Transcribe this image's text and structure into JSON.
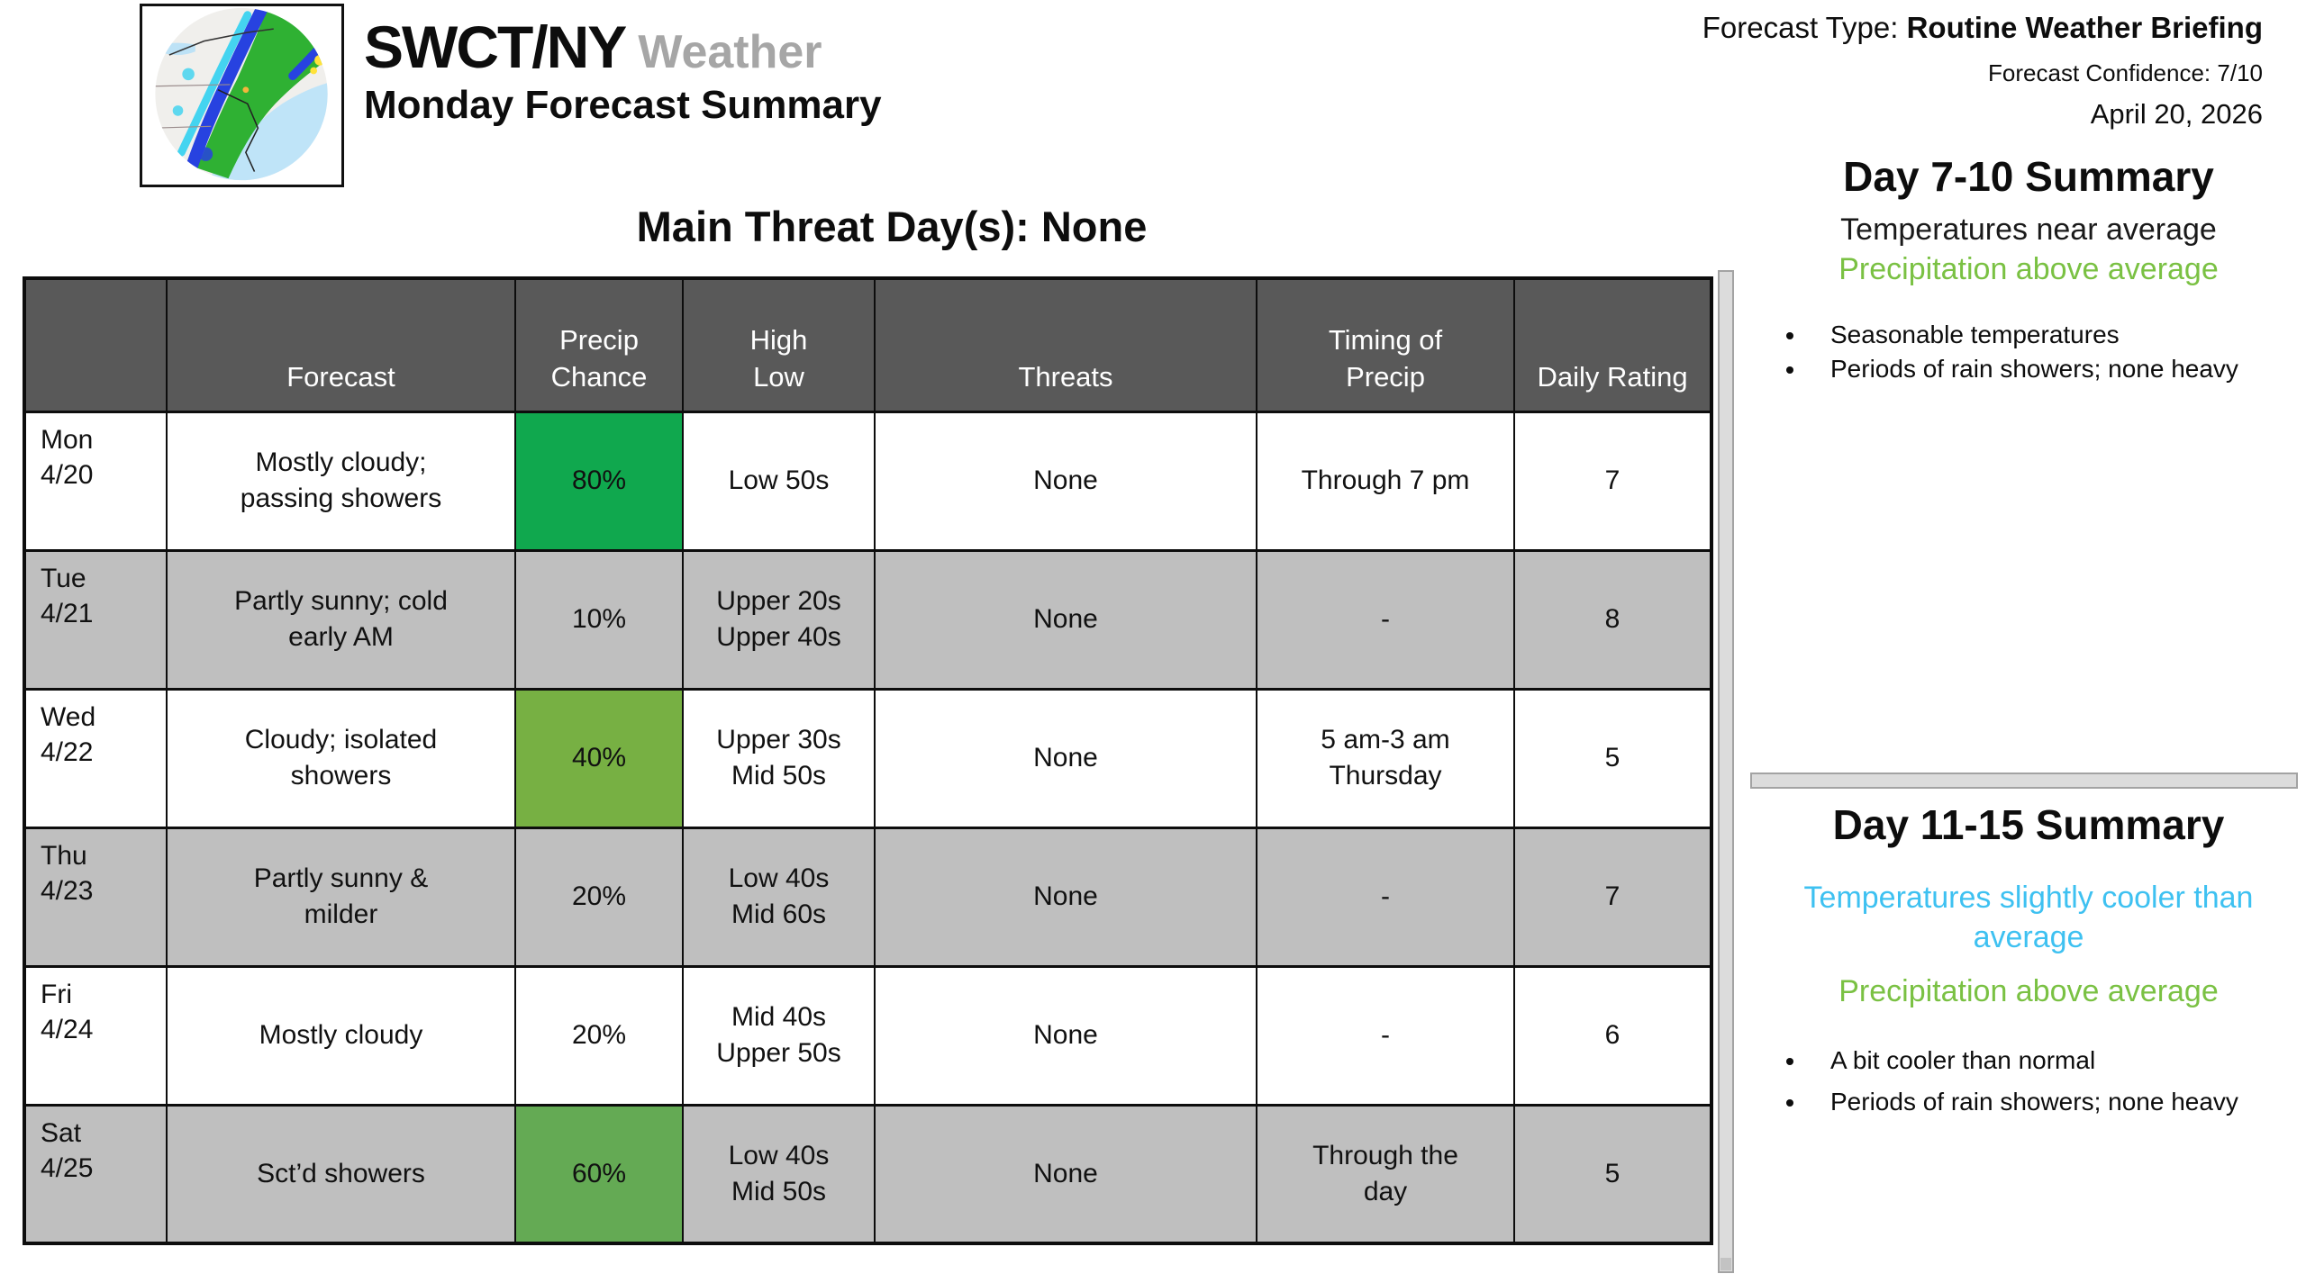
{
  "brand": {
    "name": "SWCT/NY",
    "suffix": "Weather",
    "subtitle": "Monday Forecast Summary"
  },
  "meta": {
    "forecast_type_label": "Forecast Type:",
    "forecast_type_value": "Routine Weather Briefing",
    "confidence": "Forecast Confidence: 7/10",
    "date": "April 20, 2026"
  },
  "main_threat": "Main Threat Day(s): None",
  "colors": {
    "header_bg": "#595959",
    "row_alt_bg": "#BFBFBF",
    "precip_green_high": "#10A84E",
    "precip_green_mid": "#64AA54",
    "precip_green_low": "#77B043",
    "accent_green_text": "#7AC143",
    "accent_blue_text": "#3EC1F1",
    "brand_gray": "#A6A6A6"
  },
  "table": {
    "columns": [
      "",
      "Forecast",
      "Precip\nChance",
      "High\nLow",
      "Threats",
      "Timing of\nPrecip",
      "Daily Rating"
    ],
    "rows": [
      {
        "day": "Mon\n4/20",
        "forecast": "Mostly cloudy;\npassing showers",
        "precip_chance": "80%",
        "precip_bg": "#10A84E",
        "high_low": "Low 50s",
        "threats": "None",
        "timing": "Through 7 pm",
        "rating": "7",
        "row_bg": "#FFFFFF"
      },
      {
        "day": "Tue\n4/21",
        "forecast": "Partly sunny; cold\nearly AM",
        "precip_chance": "10%",
        "precip_bg": "",
        "high_low": "Upper 20s\nUpper 40s",
        "threats": "None",
        "timing": "-",
        "rating": "8",
        "row_bg": "#BFBFBF"
      },
      {
        "day": "Wed\n4/22",
        "forecast": "Cloudy; isolated\nshowers",
        "precip_chance": "40%",
        "precip_bg": "#77B043",
        "high_low": "Upper 30s\nMid 50s",
        "threats": "None",
        "timing": "5 am-3 am\nThursday",
        "rating": "5",
        "row_bg": "#FFFFFF"
      },
      {
        "day": "Thu\n4/23",
        "forecast": "Partly sunny &\nmilder",
        "precip_chance": "20%",
        "precip_bg": "",
        "high_low": "Low 40s\nMid 60s",
        "threats": "None",
        "timing": "-",
        "rating": "7",
        "row_bg": "#BFBFBF"
      },
      {
        "day": "Fri\n4/24",
        "forecast": "Mostly cloudy",
        "precip_chance": "20%",
        "precip_bg": "",
        "high_low": "Mid 40s\nUpper 50s",
        "threats": "None",
        "timing": "-",
        "rating": "6",
        "row_bg": "#FFFFFF"
      },
      {
        "day": "Sat\n4/25",
        "forecast": "Sct’d showers",
        "precip_chance": "60%",
        "precip_bg": "#64AA54",
        "high_low": "Low 40s\nMid 50s",
        "threats": "None",
        "timing": "Through the\nday",
        "rating": "5",
        "row_bg": "#BFBFBF"
      }
    ]
  },
  "day7_10": {
    "title": "Day 7-10 Summary",
    "line1": "Temperatures near average",
    "line2": "Precipitation above average",
    "bullets": [
      "Seasonable temperatures",
      "Periods of rain showers; none heavy"
    ]
  },
  "day11_15": {
    "title": "Day 11-15 Summary",
    "line1": "Temperatures slightly cooler than average",
    "line2": "Precipitation above average",
    "bullets": [
      "A bit cooler than normal",
      "Periods of rain showers; none heavy"
    ]
  }
}
